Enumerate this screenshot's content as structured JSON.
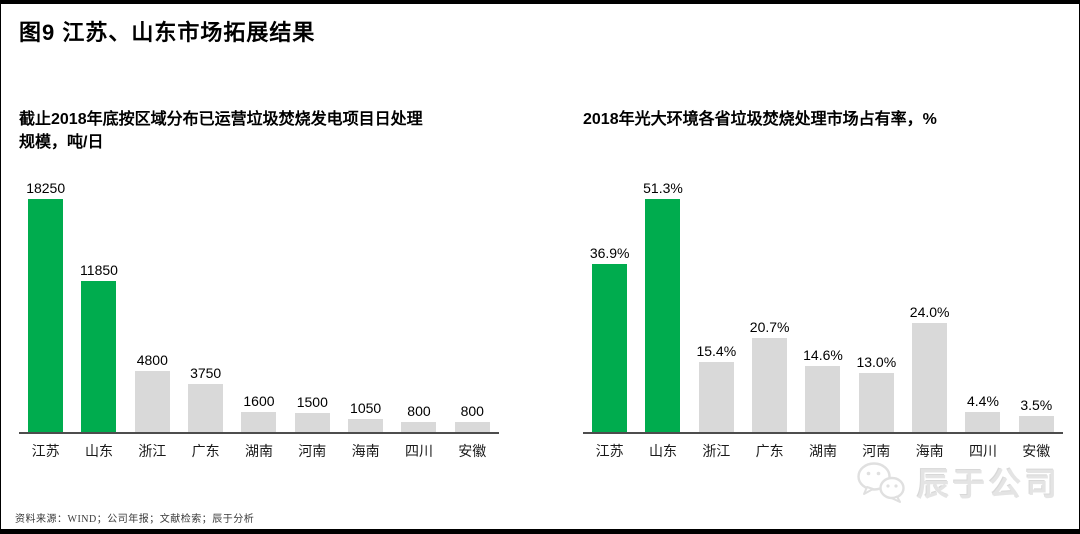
{
  "page": {
    "title": "图9  江苏、山东市场拓展结果",
    "source_note": "资料来源：WIND；公司年报；文献检索；辰于分析",
    "watermark": {
      "icon": "wechat-icon",
      "text": "辰于公司"
    }
  },
  "colors": {
    "highlight_green": "#00AC4E",
    "bar_gray": "#D9D9D9",
    "axis_line": "#4D4D4D",
    "frame_black": "#000000",
    "watermark_gray": "#E4E4E4"
  },
  "chart_data": [
    {
      "type": "bar",
      "title": "截止2018年底按区域分布已运营垃圾焚烧发电项目日处理规模，吨/日",
      "categories": [
        "江苏",
        "山东",
        "浙江",
        "广东",
        "湖南",
        "河南",
        "海南",
        "四川",
        "安徽"
      ],
      "values": [
        18250,
        11850,
        4800,
        3750,
        1600,
        1500,
        1050,
        800,
        800
      ],
      "labels": [
        "18250",
        "11850",
        "4800",
        "3750",
        "1600",
        "1500",
        "1050",
        "800",
        "800"
      ],
      "highlighted": [
        true,
        true,
        false,
        false,
        false,
        false,
        false,
        false,
        false
      ],
      "xlabel": "",
      "ylabel": "吨/日",
      "ylim": [
        0,
        18250
      ],
      "grid": false,
      "legend": "none"
    },
    {
      "type": "bar",
      "title": "2018年光大环境各省垃圾焚烧处理市场占有率，%",
      "categories": [
        "江苏",
        "山东",
        "浙江",
        "广东",
        "湖南",
        "河南",
        "海南",
        "四川",
        "安徽"
      ],
      "values": [
        36.9,
        51.3,
        15.4,
        20.7,
        14.6,
        13.0,
        24.0,
        4.4,
        3.5
      ],
      "labels": [
        "36.9%",
        "51.3%",
        "15.4%",
        "20.7%",
        "14.6%",
        "13.0%",
        "24.0%",
        "4.4%",
        "3.5%"
      ],
      "highlighted": [
        true,
        true,
        false,
        false,
        false,
        false,
        false,
        false,
        false
      ],
      "xlabel": "",
      "ylabel": "%",
      "ylim": [
        0,
        51.3
      ],
      "grid": false,
      "legend": "none"
    }
  ]
}
